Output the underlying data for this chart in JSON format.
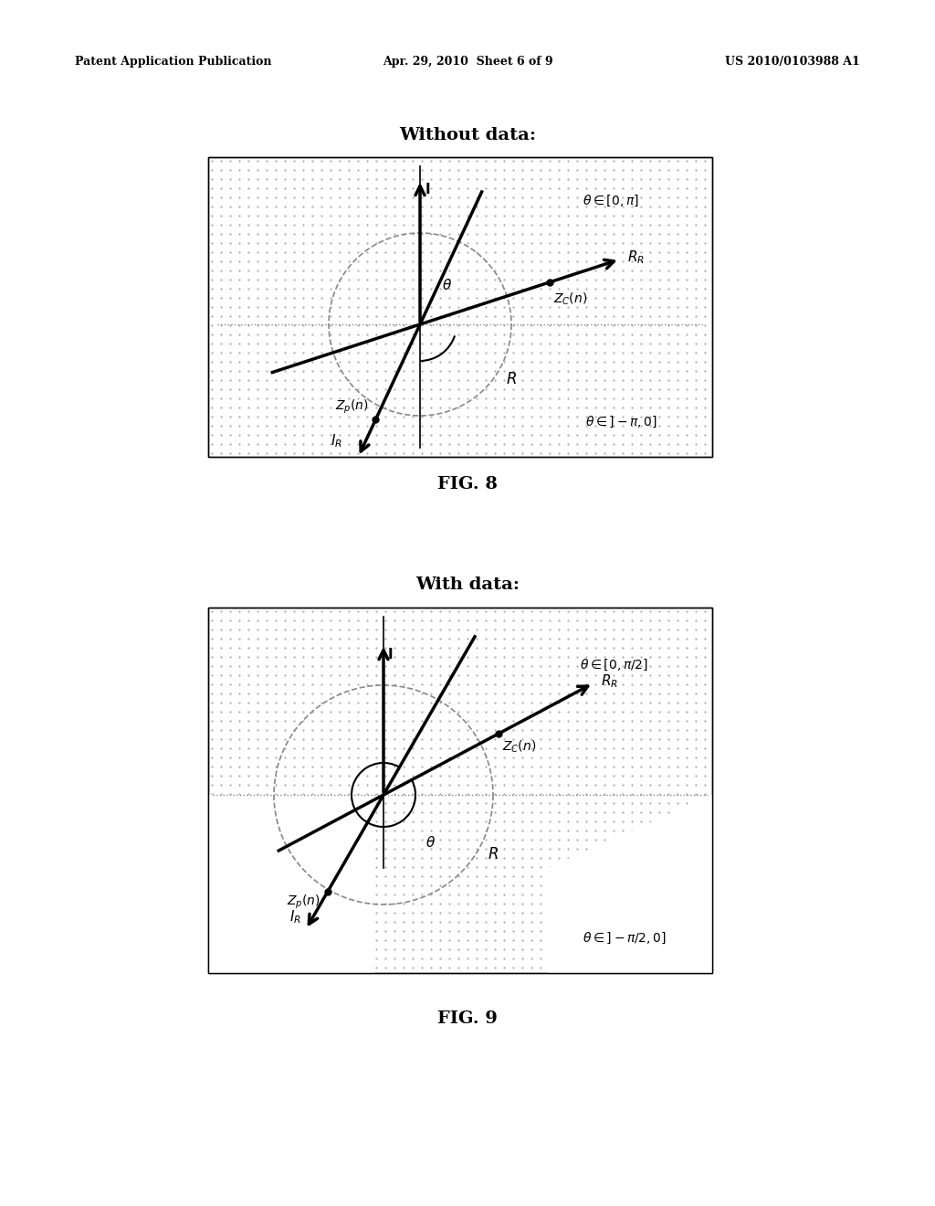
{
  "header_left": "Patent Application Publication",
  "header_center": "Apr. 29, 2010  Sheet 6 of 9",
  "header_right": "US 2010/0103988 A1",
  "fig8_title": "Without data:",
  "fig9_title": "With data:",
  "fig8_caption": "FIG. 8",
  "fig9_caption": "FIG. 9",
  "dot_color": "#000000",
  "line_color": "#000000",
  "bg_dotted": "#c8c8c8",
  "bg_white": "#ffffff",
  "arc_color": "#888888"
}
